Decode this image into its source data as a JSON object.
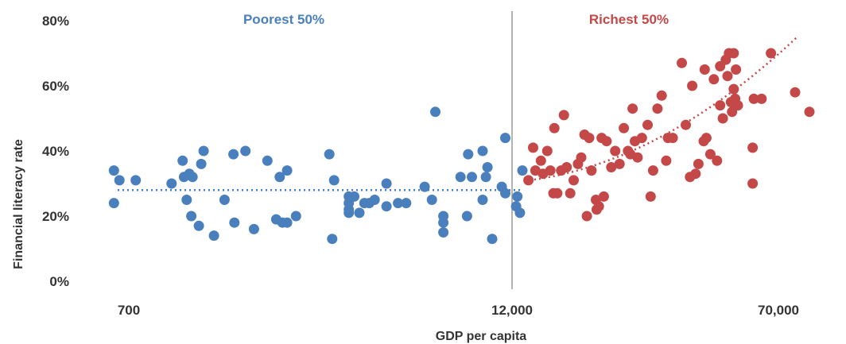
{
  "chart_data": {
    "type": "scatter",
    "title": "",
    "xlabel": "GDP per capita",
    "ylabel": "Financial literacy rate",
    "x_scale": "log",
    "x_ticks": [
      "700",
      "12,000",
      "70,000"
    ],
    "y_ticks": [
      "0%",
      "20%",
      "40%",
      "60%",
      "80%"
    ],
    "ylim": [
      0,
      80
    ],
    "grid": false,
    "colors": {
      "poorest": "#4a7fbd",
      "richest": "#c44848",
      "divider": "#9a9a9a",
      "text": "#333333"
    },
    "divider_x": 12000,
    "annotations": {
      "poorest": "Poorest 50%",
      "richest": "Richest 50%"
    },
    "series": [
      {
        "name": "Poorest 50%",
        "trend": {
          "type": "flat",
          "x_range": [
            700,
            12000
          ],
          "y": 28
        },
        "points": [
          [
            630,
            34
          ],
          [
            630,
            24
          ],
          [
            655,
            31
          ],
          [
            735,
            31
          ],
          [
            948,
            30
          ],
          [
            1025,
            37
          ],
          [
            1035,
            32
          ],
          [
            1055,
            25
          ],
          [
            1075,
            33
          ],
          [
            1090,
            20
          ],
          [
            1100,
            32
          ],
          [
            1150,
            17
          ],
          [
            1170,
            36
          ],
          [
            1190,
            40
          ],
          [
            1280,
            14
          ],
          [
            1380,
            25
          ],
          [
            1480,
            18
          ],
          [
            1470,
            39
          ],
          [
            1600,
            40
          ],
          [
            1700,
            16
          ],
          [
            1870,
            37
          ],
          [
            1990,
            19
          ],
          [
            2040,
            32
          ],
          [
            2080,
            18
          ],
          [
            2150,
            18
          ],
          [
            2150,
            34
          ],
          [
            2290,
            20
          ],
          [
            2900,
            39
          ],
          [
            2960,
            13
          ],
          [
            3000,
            31
          ],
          [
            3330,
            26
          ],
          [
            3330,
            24
          ],
          [
            3330,
            21
          ],
          [
            3330,
            22
          ],
          [
            3460,
            26
          ],
          [
            3590,
            21
          ],
          [
            3720,
            24
          ],
          [
            3850,
            24
          ],
          [
            4000,
            25
          ],
          [
            4350,
            23
          ],
          [
            4350,
            30
          ],
          [
            4720,
            24
          ],
          [
            5000,
            24
          ],
          [
            5700,
            29
          ],
          [
            6000,
            25
          ],
          [
            6150,
            52
          ],
          [
            6510,
            20
          ],
          [
            6510,
            15
          ],
          [
            6510,
            18
          ],
          [
            7350,
            32
          ],
          [
            7700,
            20
          ],
          [
            7760,
            39
          ],
          [
            7970,
            32
          ],
          [
            8600,
            40
          ],
          [
            8600,
            25
          ],
          [
            8800,
            32
          ],
          [
            8900,
            35
          ],
          [
            9200,
            13
          ],
          [
            9850,
            29
          ],
          [
            10100,
            44
          ],
          [
            10100,
            27
          ],
          [
            10900,
            23
          ],
          [
            11000,
            26
          ],
          [
            11200,
            21
          ],
          [
            11400,
            34
          ]
        ]
      },
      {
        "name": "Richest 50%",
        "trend": {
          "type": "curve",
          "x_range": [
            12000,
            80000
          ]
        },
        "points": [
          [
            11900,
            31
          ],
          [
            12300,
            41
          ],
          [
            12500,
            34
          ],
          [
            13000,
            37
          ],
          [
            13200,
            33
          ],
          [
            13600,
            40
          ],
          [
            13900,
            34
          ],
          [
            14200,
            27
          ],
          [
            14300,
            47
          ],
          [
            14600,
            27
          ],
          [
            15000,
            34
          ],
          [
            15300,
            51
          ],
          [
            15600,
            35
          ],
          [
            16000,
            27
          ],
          [
            16400,
            31
          ],
          [
            16900,
            36
          ],
          [
            17300,
            38
          ],
          [
            17700,
            45
          ],
          [
            18000,
            20
          ],
          [
            18300,
            44
          ],
          [
            18600,
            34
          ],
          [
            19200,
            25
          ],
          [
            19300,
            22
          ],
          [
            19600,
            23
          ],
          [
            20000,
            44
          ],
          [
            20300,
            26
          ],
          [
            20700,
            43
          ],
          [
            21400,
            35
          ],
          [
            22000,
            40
          ],
          [
            22700,
            36
          ],
          [
            23400,
            47
          ],
          [
            24100,
            40
          ],
          [
            24500,
            39
          ],
          [
            24900,
            53
          ],
          [
            25300,
            43
          ],
          [
            25800,
            38
          ],
          [
            26600,
            44
          ],
          [
            27700,
            48
          ],
          [
            28300,
            26
          ],
          [
            28800,
            34
          ],
          [
            29700,
            53
          ],
          [
            30600,
            57
          ],
          [
            31600,
            37
          ],
          [
            32000,
            44
          ],
          [
            33100,
            44
          ],
          [
            35300,
            67
          ],
          [
            36300,
            48
          ],
          [
            37400,
            32
          ],
          [
            38000,
            60
          ],
          [
            38900,
            33
          ],
          [
            39700,
            36
          ],
          [
            41200,
            43
          ],
          [
            41500,
            65
          ],
          [
            42000,
            44
          ],
          [
            43200,
            39
          ],
          [
            44300,
            62
          ],
          [
            45300,
            37
          ],
          [
            46300,
            66
          ],
          [
            46300,
            54
          ],
          [
            47200,
            50
          ],
          [
            48200,
            68
          ],
          [
            48800,
            63
          ],
          [
            49300,
            70
          ],
          [
            50000,
            55
          ],
          [
            50400,
            52
          ],
          [
            51000,
            59
          ],
          [
            51000,
            70
          ],
          [
            51500,
            56
          ],
          [
            51800,
            65
          ],
          [
            52500,
            54
          ],
          [
            58300,
            30
          ],
          [
            58300,
            41
          ],
          [
            58800,
            56
          ],
          [
            62100,
            56
          ],
          [
            66400,
            70
          ],
          [
            78800,
            58
          ],
          [
            87200,
            52
          ]
        ]
      }
    ]
  }
}
